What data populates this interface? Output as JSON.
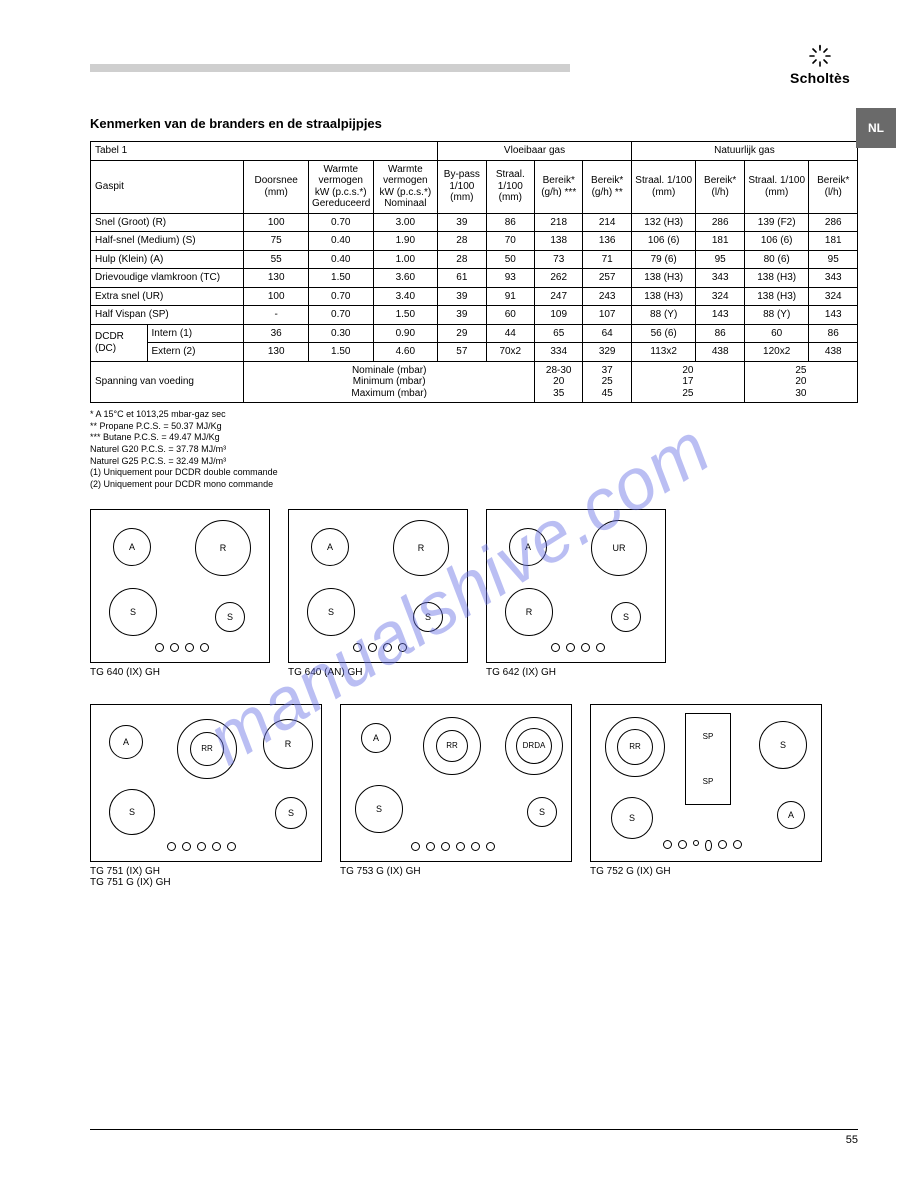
{
  "brand": "Scholtès",
  "lang_tab": "NL",
  "section_title": "Kenmerken van de branders en de straalpijpjes",
  "watermark": "manualshive.com",
  "table": {
    "group_headers": [
      "Tabel 1",
      "Vloeibaar gas",
      "Natuurlijk gas"
    ],
    "row_head": [
      "Gaspit",
      "Doorsnee (mm)",
      "Warmte vermogen kW (p.c.s.*) Gereduceerd",
      "Warmte vermogen kW (p.c.s.*) Nominaal",
      "By-pass 1/100 (mm)",
      "Straal. 1/100 (mm)",
      "Bereik* (g/h) ***",
      "Bereik* (g/h) **",
      "Straal. 1/100 (mm)",
      "Bereik* (l/h)",
      "Straal. 1/100 (mm)",
      "Bereik* (l/h)"
    ],
    "rows": [
      [
        "Snel (Groot) (R)",
        "100",
        "0.70",
        "3.00",
        "39",
        "86",
        "218",
        "214",
        "132 (H3)",
        "286",
        "139 (F2)",
        "286"
      ],
      [
        "Half-snel (Medium) (S)",
        "75",
        "0.40",
        "1.90",
        "28",
        "70",
        "138",
        "136",
        "106 (6)",
        "181",
        "106 (6)",
        "181"
      ],
      [
        "Hulp (Klein) (A)",
        "55",
        "0.40",
        "1.00",
        "28",
        "50",
        "73",
        "71",
        "79 (6)",
        "95",
        "80 (6)",
        "95"
      ],
      [
        "Drievoudige vlamkroon (TC)",
        "130",
        "1.50",
        "3.60",
        "61",
        "93",
        "262",
        "257",
        "138 (H3)",
        "343",
        "138 (H3)",
        "343"
      ],
      [
        "Extra snel (UR)",
        "100",
        "0.70",
        "3.40",
        "39",
        "91",
        "247",
        "243",
        "138 (H3)",
        "324",
        "138 (H3)",
        "324"
      ],
      [
        "Half Vispan (SP)",
        "-",
        "0.70",
        "1.50",
        "39",
        "60",
        "109",
        "107",
        "88 (Y)",
        "143",
        "88 (Y)",
        "143"
      ]
    ],
    "dcdr_rows": [
      [
        "DCDR Intern (DC)",
        "36",
        "0.30",
        "0.90",
        "29",
        "44",
        "65",
        "64",
        "56 (6)",
        "86",
        "60",
        "86"
      ],
      [
        "DCDR Extern (DC)",
        "130",
        "1.50",
        "4.60",
        "57",
        "70x2",
        "334",
        "329",
        "113x2",
        "438",
        "120x2",
        "438"
      ]
    ],
    "supply_row": {
      "label": "Spanning van voeding",
      "nom": "Nominale (mbar)\nMinimum (mbar)\nMaximum (mbar)",
      "c1": "28-30\n20\n35",
      "c2": "37\n25\n45",
      "c3": "20\n17\n25",
      "c4": "25\n20\n30"
    }
  },
  "footnotes": [
    "* A 15°C et 1013,25 mbar-gaz sec",
    "** Propane P.C.S. = 50.37 MJ/Kg",
    "*** Butane P.C.S. = 49.47 MJ/Kg",
    "    Naturel G20 P.C.S. = 37.78 MJ/m³",
    "    Naturel G25 P.C.S. = 32.49 MJ/m³",
    "(1) Uniquement pour DCDR double commande",
    "(2) Uniquement pour DCDR mono commande"
  ],
  "hobs_row1": [
    {
      "label": "TG 640 (IX) GH",
      "burners": [
        "A",
        "S",
        "S",
        "R"
      ]
    },
    {
      "label": "TG 640 (AN) GH",
      "burners": [
        "A",
        "S",
        "S",
        "R"
      ]
    },
    {
      "label": "TG 642 (IX) GH",
      "burners": [
        "A",
        "S",
        "R",
        "UR"
      ]
    }
  ],
  "hobs_row2": [
    {
      "label": "TG 751 (IX) GH\nTG 751 G (IX) GH",
      "burners": [
        "A",
        "S",
        "S",
        "RR",
        "R"
      ]
    },
    {
      "label": "TG 753 G (IX) GH",
      "burners": [
        "A",
        "S",
        "RR",
        "S",
        "DRDA"
      ]
    },
    {
      "label": "TG 752 G (IX) GH",
      "burners": [
        "A",
        "S",
        "SP",
        "SP",
        "RR"
      ]
    }
  ],
  "burner_codes": {
    "A": "A",
    "S": "S",
    "R": "R",
    "UR": "UR",
    "RR": "RR",
    "DRDA": "DRDA",
    "SP": "SP"
  },
  "page_number": "55"
}
